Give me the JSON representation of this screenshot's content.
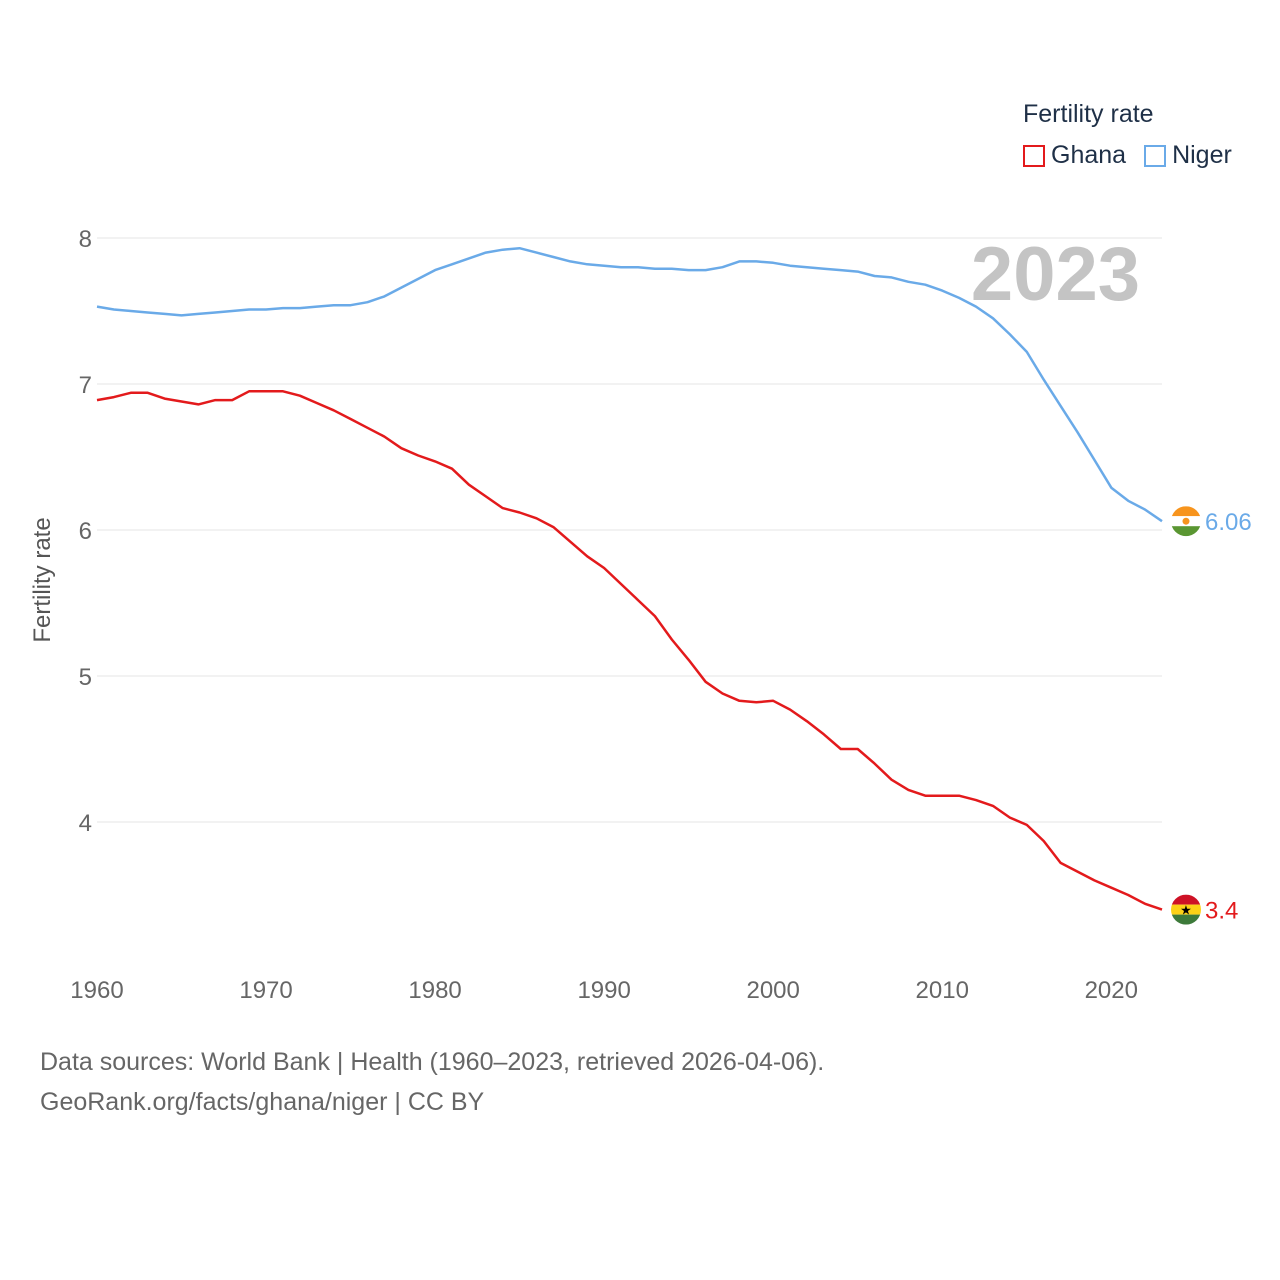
{
  "chart_data": {
    "type": "line",
    "ylabel": "Fertility rate",
    "year_label": "2023",
    "x_ticks": [
      1960,
      1970,
      1980,
      1990,
      2000,
      2010,
      2020
    ],
    "y_ticks": [
      4,
      5,
      6,
      7,
      8
    ],
    "xlim": [
      1960,
      2023
    ],
    "ylim": [
      3.0,
      8.25
    ],
    "legend": {
      "title": "Fertility rate",
      "items": [
        {
          "label": "Ghana",
          "color": "#e31a1c"
        },
        {
          "label": "Niger",
          "color": "#6aaae8"
        }
      ]
    },
    "series": [
      {
        "name": "Ghana",
        "color": "#e31a1c",
        "end_label": "3.4",
        "x": [
          1960,
          1961,
          1962,
          1963,
          1964,
          1965,
          1966,
          1967,
          1968,
          1969,
          1970,
          1971,
          1972,
          1973,
          1974,
          1975,
          1976,
          1977,
          1978,
          1979,
          1980,
          1981,
          1982,
          1983,
          1984,
          1985,
          1986,
          1987,
          1988,
          1989,
          1990,
          1991,
          1992,
          1993,
          1994,
          1995,
          1996,
          1997,
          1998,
          1999,
          2000,
          2001,
          2002,
          2003,
          2004,
          2005,
          2006,
          2007,
          2008,
          2009,
          2010,
          2011,
          2012,
          2013,
          2014,
          2015,
          2016,
          2017,
          2018,
          2019,
          2020,
          2021,
          2022,
          2023
        ],
        "values": [
          6.89,
          6.91,
          6.94,
          6.94,
          6.9,
          6.88,
          6.86,
          6.89,
          6.89,
          6.95,
          6.95,
          6.95,
          6.92,
          6.87,
          6.82,
          6.76,
          6.7,
          6.64,
          6.56,
          6.51,
          6.47,
          6.42,
          6.31,
          6.23,
          6.15,
          6.12,
          6.08,
          6.02,
          5.92,
          5.82,
          5.74,
          5.63,
          5.52,
          5.41,
          5.25,
          5.11,
          4.96,
          4.88,
          4.83,
          4.82,
          4.83,
          4.77,
          4.69,
          4.6,
          4.5,
          4.5,
          4.4,
          4.29,
          4.22,
          4.18,
          4.18,
          4.18,
          4.15,
          4.11,
          4.03,
          3.98,
          3.87,
          3.72,
          3.66,
          3.6,
          3.55,
          3.5,
          3.44,
          3.4
        ]
      },
      {
        "name": "Niger",
        "color": "#6aaae8",
        "end_label": "6.06",
        "x": [
          1960,
          1961,
          1962,
          1963,
          1964,
          1965,
          1966,
          1967,
          1968,
          1969,
          1970,
          1971,
          1972,
          1973,
          1974,
          1975,
          1976,
          1977,
          1978,
          1979,
          1980,
          1981,
          1982,
          1983,
          1984,
          1985,
          1986,
          1987,
          1988,
          1989,
          1990,
          1991,
          1992,
          1993,
          1994,
          1995,
          1996,
          1997,
          1998,
          1999,
          2000,
          2001,
          2002,
          2003,
          2004,
          2005,
          2006,
          2007,
          2008,
          2009,
          2010,
          2011,
          2012,
          2013,
          2014,
          2015,
          2016,
          2017,
          2018,
          2019,
          2020,
          2021,
          2022,
          2023
        ],
        "values": [
          7.53,
          7.51,
          7.5,
          7.49,
          7.48,
          7.47,
          7.48,
          7.49,
          7.5,
          7.51,
          7.51,
          7.52,
          7.52,
          7.53,
          7.54,
          7.54,
          7.56,
          7.6,
          7.66,
          7.72,
          7.78,
          7.82,
          7.86,
          7.9,
          7.92,
          7.93,
          7.9,
          7.87,
          7.84,
          7.82,
          7.81,
          7.8,
          7.8,
          7.79,
          7.79,
          7.78,
          7.78,
          7.8,
          7.84,
          7.84,
          7.83,
          7.81,
          7.8,
          7.79,
          7.78,
          7.77,
          7.74,
          7.73,
          7.7,
          7.68,
          7.64,
          7.59,
          7.53,
          7.45,
          7.34,
          7.22,
          7.03,
          6.85,
          6.67,
          6.48,
          6.29,
          6.2,
          6.14,
          6.06
        ]
      }
    ]
  },
  "source": {
    "line1": "Data sources: World Bank | Health (1960–2023, retrieved 2026-04-06).",
    "line2": "GeoRank.org/facts/ghana/niger | CC BY"
  }
}
